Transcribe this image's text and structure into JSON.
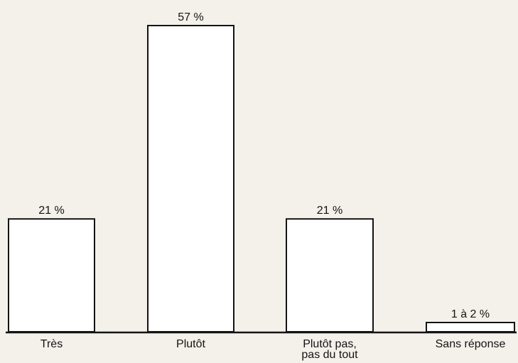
{
  "chart_data": {
    "type": "bar",
    "title": "",
    "xlabel": "",
    "ylabel": "",
    "ylim": [
      0,
      57
    ],
    "grid": false,
    "categories": [
      [
        "Très"
      ],
      [
        "Plutôt"
      ],
      [
        "Plutôt pas,",
        "pas du tout"
      ],
      [
        "Sans réponse"
      ]
    ],
    "values": [
      21,
      57,
      21,
      1.5
    ],
    "value_labels": [
      "21 %",
      "57 %",
      "21 %",
      "1 à 2 %"
    ],
    "colors": {
      "bar_fill": "#ffffff",
      "bar_stroke": "#141414",
      "background": "#f4f0ea"
    }
  }
}
